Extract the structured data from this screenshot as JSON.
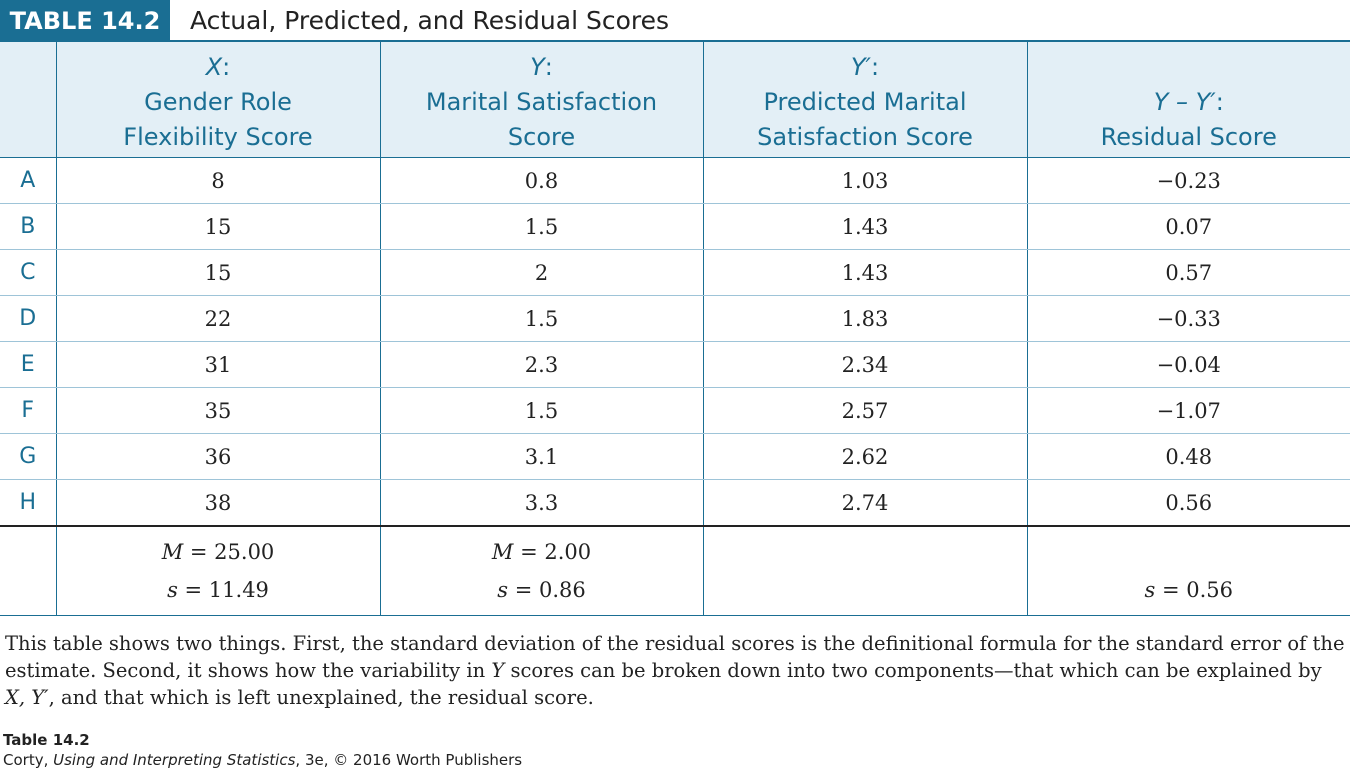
{
  "header": {
    "label": "TABLE 14.2",
    "title": "Actual, Predicted, and Residual Scores"
  },
  "columns": [
    {
      "symbol": "X",
      "line1": "Gender Role",
      "line2": "Flexibility Score"
    },
    {
      "symbol": "Y",
      "line1": "Marital Satisfaction",
      "line2": "Score"
    },
    {
      "symbol": "Y′",
      "line1": "Predicted Marital",
      "line2": "Satisfaction Score"
    },
    {
      "symbol": "Y – Y′",
      "line1": "Residual Score",
      "line2": ""
    }
  ],
  "rows": [
    {
      "label": "A",
      "x": "8",
      "y": "0.8",
      "yp": "1.03",
      "res": "−0.23"
    },
    {
      "label": "B",
      "x": "15",
      "y": "1.5",
      "yp": "1.43",
      "res": "0.07"
    },
    {
      "label": "C",
      "x": "15",
      "y": "2",
      "yp": "1.43",
      "res": "0.57"
    },
    {
      "label": "D",
      "x": "22",
      "y": "1.5",
      "yp": "1.83",
      "res": "−0.33"
    },
    {
      "label": "E",
      "x": "31",
      "y": "2.3",
      "yp": "2.34",
      "res": "−0.04"
    },
    {
      "label": "F",
      "x": "35",
      "y": "1.5",
      "yp": "2.57",
      "res": "−1.07"
    },
    {
      "label": "G",
      "x": "36",
      "y": "3.1",
      "yp": "2.62",
      "res": "0.48"
    },
    {
      "label": "H",
      "x": "38",
      "y": "3.3",
      "yp": "2.74",
      "res": "0.56"
    }
  ],
  "summary": {
    "x": {
      "m": "25.00",
      "s": "11.49"
    },
    "y": {
      "m": "2.00",
      "s": "0.86"
    },
    "res": {
      "s": "0.56"
    }
  },
  "caption": {
    "part1": "This table shows two things. First, the standard deviation of the residual scores is the definitional formula for the standard error of the estimate. Second, it shows how the variability in ",
    "y": "Y",
    "part2": " scores can be broken down into two components—that which can be explained by ",
    "x": "X, Y′",
    "part3": ", and that which is left unexplained, the residual score."
  },
  "footer": {
    "line1": "Table 14.2",
    "author": "Corty, ",
    "book": "Using and Interpreting Statistics",
    "rest": ", 3e, © 2016 Worth Publishers"
  },
  "colors": {
    "accent": "#1a6e93",
    "header_bg": "#e3eff6"
  }
}
